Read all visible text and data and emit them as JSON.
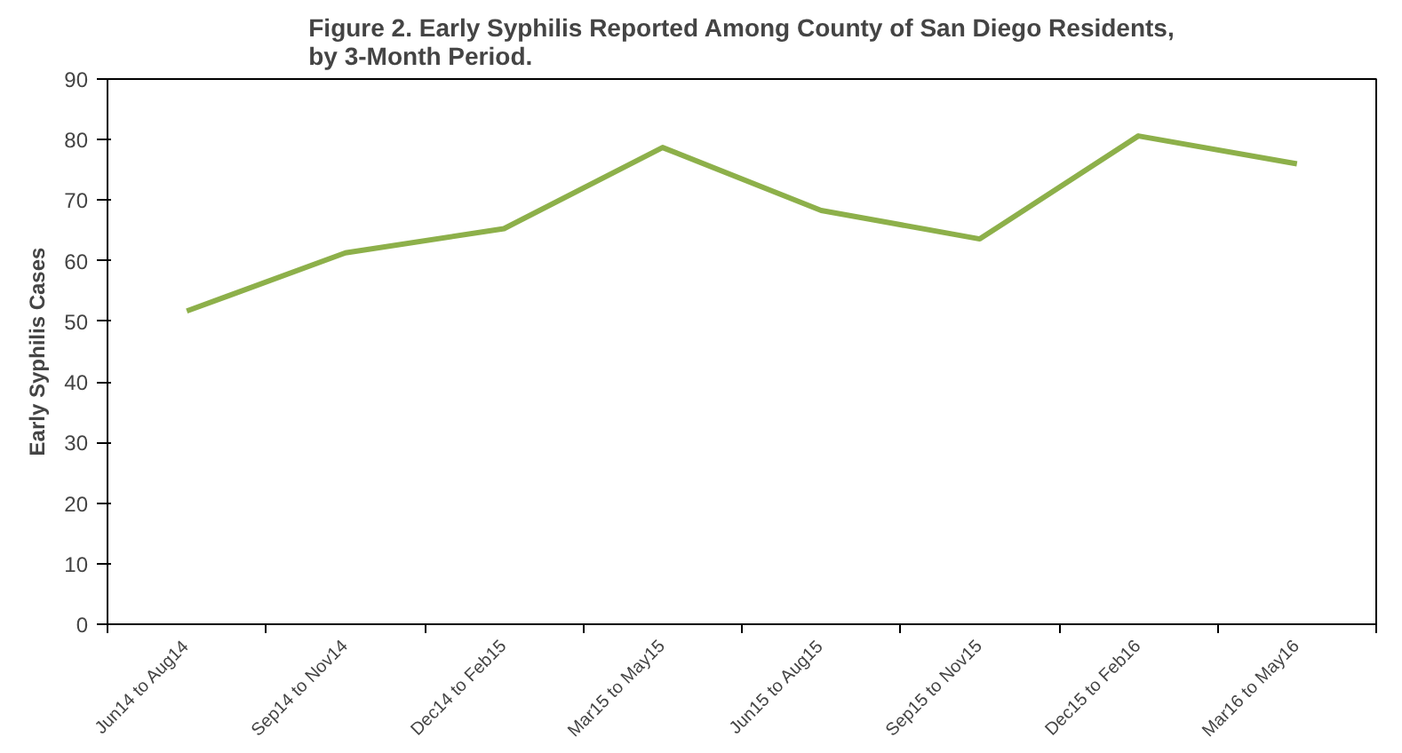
{
  "chart_data": {
    "type": "line",
    "title": "Figure 2. Early Syphilis Reported Among County of San Diego Residents,\nby 3-Month Period.",
    "ylabel": "Early Syphilis Cases",
    "categories": [
      "Jun14 to Aug14",
      "Sep14 to Nov14",
      "Dec14 to Feb15",
      "Mar15 to May15",
      "Jun15 to Aug15",
      "Sep15 to Nov15",
      "Dec15 to Feb16",
      "Mar16 to May16"
    ],
    "series": [
      {
        "color": "#8db04a",
        "values": [
          51.7,
          61.3,
          65.3,
          78.7,
          68.3,
          63.6,
          80.6,
          76.0
        ]
      }
    ],
    "ylim": [
      0,
      90
    ],
    "yticks": [
      0,
      10,
      20,
      30,
      40,
      50,
      60,
      70,
      80,
      90
    ],
    "grid": false,
    "marker": "none",
    "line_style": "solid"
  }
}
